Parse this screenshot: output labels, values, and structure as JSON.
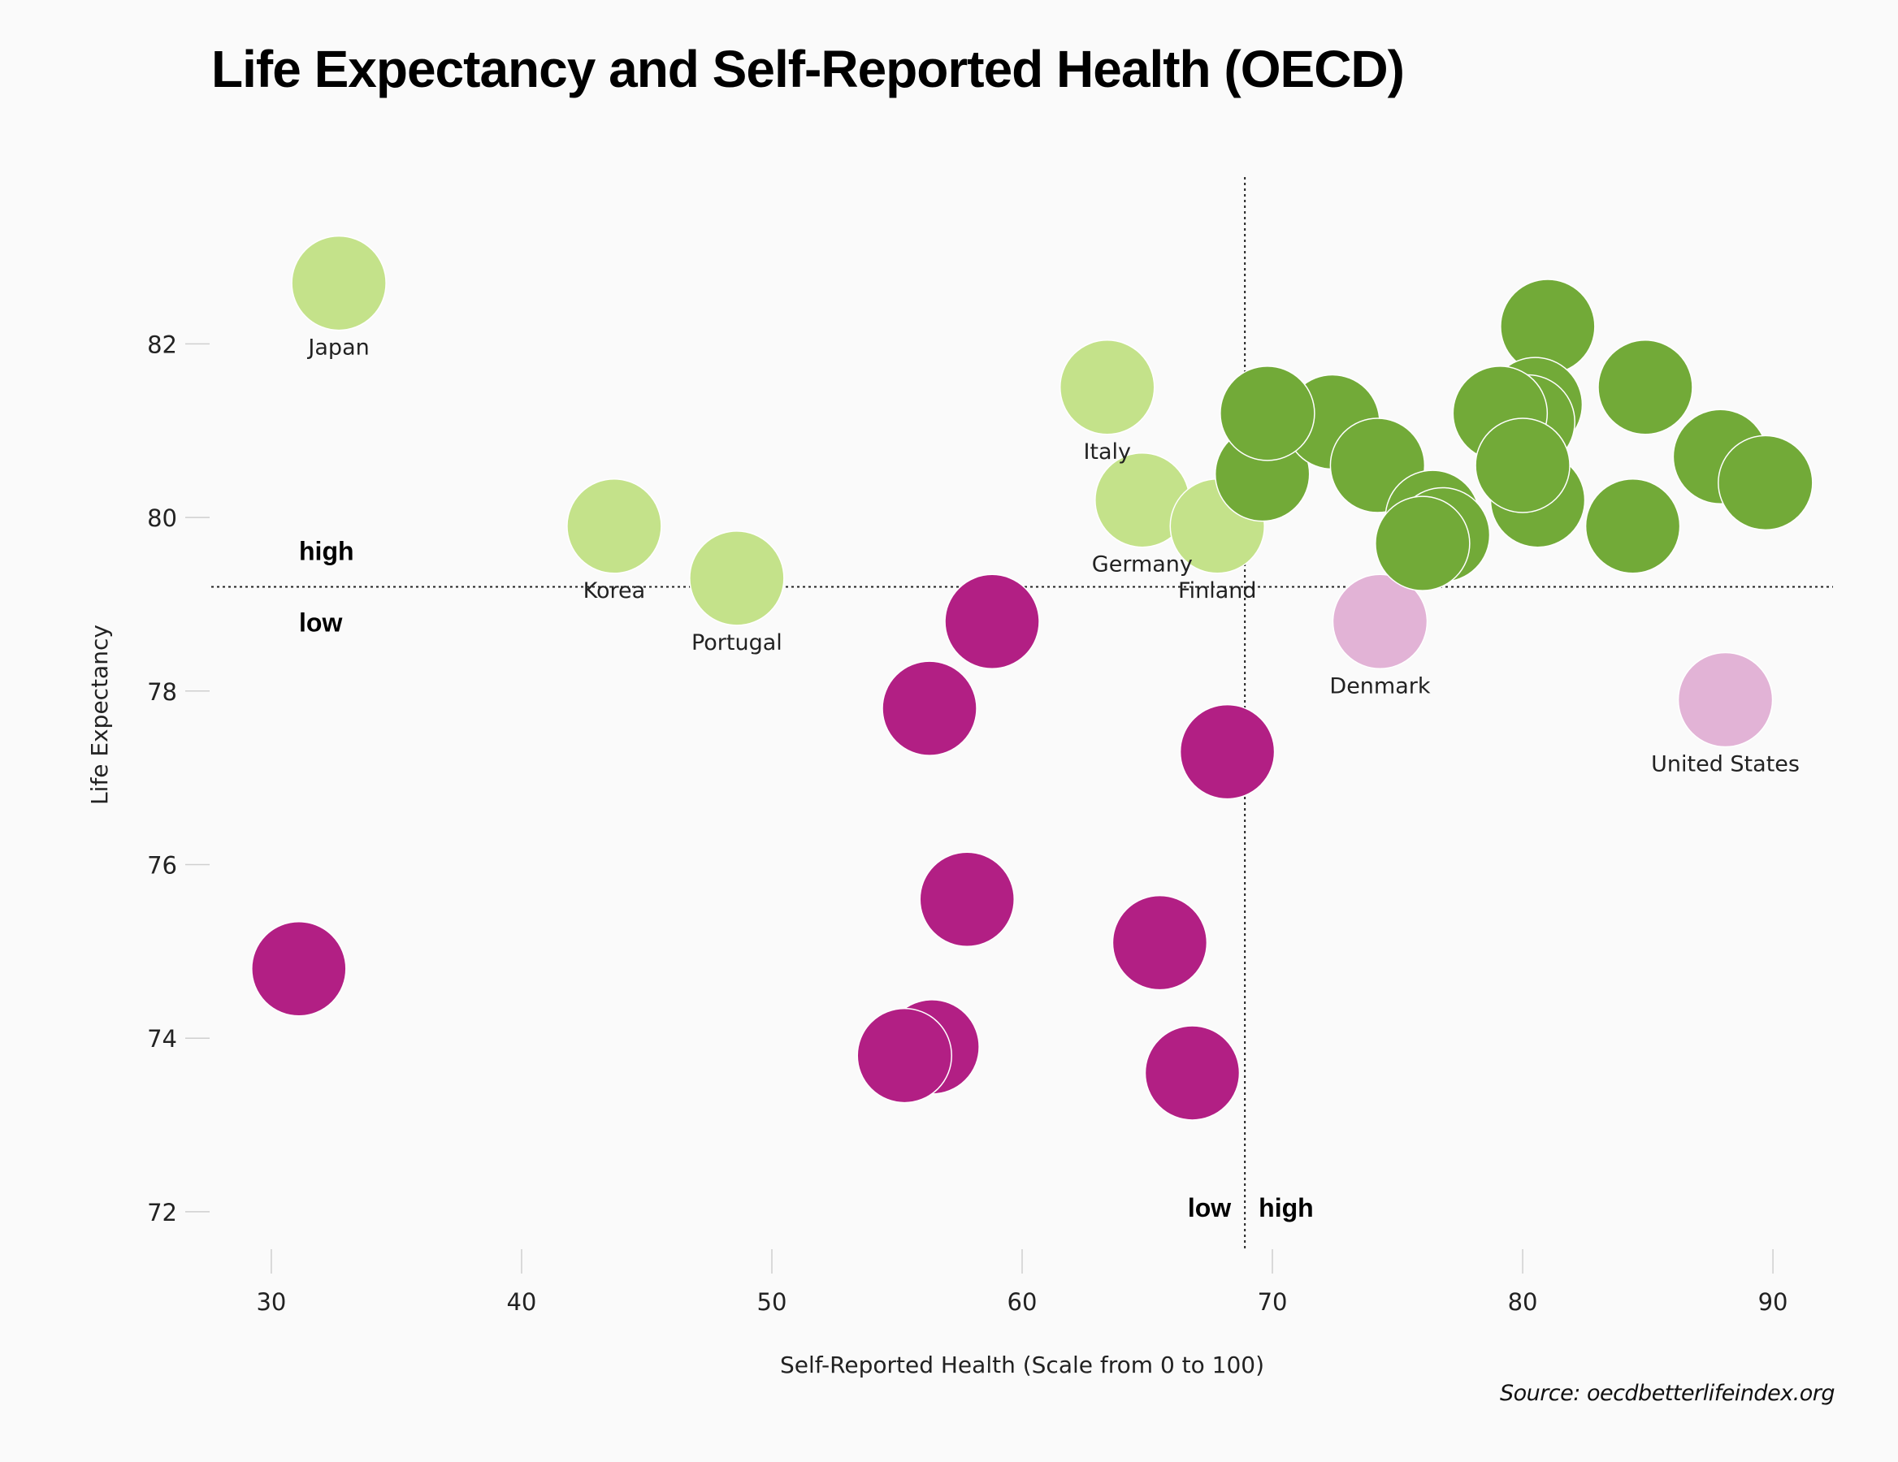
{
  "title": "Life Expectancy and Self-Reported Health (OECD)",
  "source": "Source: oecdbetterlifeindex.org",
  "chart_data": {
    "type": "scatter",
    "title": "Life Expectancy and Self-Reported Health (OECD)",
    "xlabel": "Self-Reported Health (Scale from 0 to 100)",
    "ylabel": "Life Expectancy",
    "xlim": [
      27.6,
      92.4
    ],
    "ylim": [
      71.55,
      83.95
    ],
    "x_ticks": [
      30,
      40,
      50,
      60,
      70,
      80,
      90
    ],
    "y_ticks": [
      72,
      74,
      76,
      78,
      80,
      82
    ],
    "grid": false,
    "reference_lines": {
      "x": 68.9,
      "y": 79.2
    },
    "quadrant_labels": {
      "y_high": "high",
      "y_low": "low",
      "x_low": "low",
      "x_high": "high"
    },
    "colors": {
      "high_high": "#72aa38",
      "low_health_high_life": "#c4e28a",
      "low_low": "#b21f84",
      "high_health_low_life": "#e2b3d6"
    },
    "points": [
      {
        "x": 32.7,
        "y": 82.7,
        "group": "low_health_high_life",
        "label": "Japan"
      },
      {
        "x": 43.7,
        "y": 79.9,
        "group": "low_health_high_life",
        "label": "Korea"
      },
      {
        "x": 48.6,
        "y": 79.3,
        "group": "low_health_high_life",
        "label": "Portugal"
      },
      {
        "x": 63.4,
        "y": 81.5,
        "group": "low_health_high_life",
        "label": "Italy"
      },
      {
        "x": 64.8,
        "y": 80.2,
        "group": "low_health_high_life",
        "label": "Germany"
      },
      {
        "x": 67.8,
        "y": 79.9,
        "group": "low_health_high_life",
        "label": "Finland"
      },
      {
        "x": 74.3,
        "y": 78.8,
        "group": "high_health_low_life",
        "label": "Denmark"
      },
      {
        "x": 88.1,
        "y": 77.9,
        "group": "high_health_low_life",
        "label": "United States"
      },
      {
        "x": 31.1,
        "y": 74.8,
        "group": "low_low",
        "label": ""
      },
      {
        "x": 58.8,
        "y": 78.8,
        "group": "low_low",
        "label": ""
      },
      {
        "x": 56.3,
        "y": 77.8,
        "group": "low_low",
        "label": ""
      },
      {
        "x": 68.2,
        "y": 77.3,
        "group": "low_low",
        "label": ""
      },
      {
        "x": 57.8,
        "y": 75.6,
        "group": "low_low",
        "label": ""
      },
      {
        "x": 65.5,
        "y": 75.1,
        "group": "low_low",
        "label": ""
      },
      {
        "x": 56.4,
        "y": 73.9,
        "group": "low_low",
        "label": ""
      },
      {
        "x": 55.3,
        "y": 73.8,
        "group": "low_low",
        "label": ""
      },
      {
        "x": 66.8,
        "y": 73.6,
        "group": "low_low",
        "label": ""
      },
      {
        "x": 69.6,
        "y": 80.5,
        "group": "high_high",
        "label": ""
      },
      {
        "x": 72.4,
        "y": 81.1,
        "group": "high_high",
        "label": ""
      },
      {
        "x": 69.8,
        "y": 81.2,
        "group": "high_high",
        "label": ""
      },
      {
        "x": 74.2,
        "y": 80.6,
        "group": "high_high",
        "label": ""
      },
      {
        "x": 76.4,
        "y": 80.0,
        "group": "high_high",
        "label": ""
      },
      {
        "x": 76.8,
        "y": 79.8,
        "group": "high_high",
        "label": ""
      },
      {
        "x": 76.0,
        "y": 79.7,
        "group": "high_high",
        "label": ""
      },
      {
        "x": 81.0,
        "y": 82.2,
        "group": "high_high",
        "label": ""
      },
      {
        "x": 80.5,
        "y": 81.3,
        "group": "high_high",
        "label": ""
      },
      {
        "x": 80.2,
        "y": 81.1,
        "group": "high_high",
        "label": ""
      },
      {
        "x": 79.1,
        "y": 81.2,
        "group": "high_high",
        "label": ""
      },
      {
        "x": 80.6,
        "y": 80.2,
        "group": "high_high",
        "label": ""
      },
      {
        "x": 80.0,
        "y": 80.6,
        "group": "high_high",
        "label": ""
      },
      {
        "x": 84.9,
        "y": 81.5,
        "group": "high_high",
        "label": ""
      },
      {
        "x": 84.4,
        "y": 79.9,
        "group": "high_high",
        "label": ""
      },
      {
        "x": 87.9,
        "y": 80.7,
        "group": "high_high",
        "label": ""
      },
      {
        "x": 89.7,
        "y": 80.4,
        "group": "high_high",
        "label": ""
      }
    ]
  }
}
